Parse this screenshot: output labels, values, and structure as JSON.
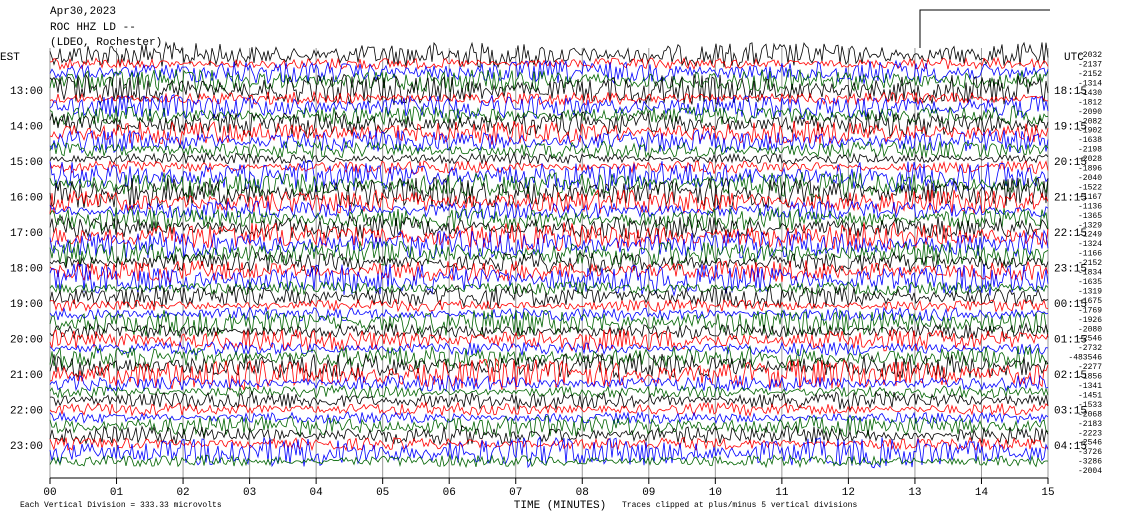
{
  "chart_data": {
    "type": "helicorder",
    "title_lines": [
      "Apr30,2023",
      "ROC HHZ LD --",
      "(LDEO, Rochester)"
    ],
    "left_axis_label": "EST",
    "left_labels": [
      "13:00",
      "14:00",
      "15:00",
      "16:00",
      "17:00",
      "18:00",
      "19:00",
      "20:00",
      "21:00",
      "22:00",
      "23:00"
    ],
    "right_axis_label": "UTC",
    "right_labels": [
      "18:15",
      "19:15",
      "20:15",
      "21:15",
      "22:15",
      "23:15",
      "00:15",
      "01:15",
      "02:15",
      "03:15",
      "04:15"
    ],
    "trace_labels": [
      "-2032",
      "-2137",
      "-2152",
      "-1314",
      "-1430",
      "-1812",
      "-2090",
      "-2082",
      "-1902",
      "-1638",
      "-2198",
      "-2028",
      "-1896",
      "-2040",
      "-1522",
      "-1167",
      "-1136",
      "-1365",
      "-1329",
      "-1249",
      "-1324",
      "-1166",
      "-2152",
      "-1834",
      "-1635",
      "-1319",
      "-1675",
      "-1769",
      "-1926",
      "-2080",
      "-2546",
      "-2732",
      "-483546",
      "-2277",
      "-1856",
      "-1341",
      "-1451",
      "-1533",
      "-2068",
      "-2183",
      "-2223",
      "-2546",
      "-3726",
      "-3286",
      "-2004"
    ],
    "colors": [
      "#000000",
      "#ff0000",
      "#0000ff",
      "#006400"
    ],
    "xlabel": "TIME (MINUTES)",
    "xlim": [
      0,
      15
    ],
    "xticks": [
      {
        "value": 0,
        "label": "00"
      },
      {
        "value": 1,
        "label": "01"
      },
      {
        "value": 2,
        "label": "02"
      },
      {
        "value": 3,
        "label": "03"
      },
      {
        "value": 4,
        "label": "04"
      },
      {
        "value": 5,
        "label": "05"
      },
      {
        "value": 6,
        "label": "06"
      },
      {
        "value": 7,
        "label": "07"
      },
      {
        "value": 8,
        "label": "08"
      },
      {
        "value": 9,
        "label": "09"
      },
      {
        "value": 10,
        "label": "10"
      },
      {
        "value": 11,
        "label": "11"
      },
      {
        "value": 12,
        "label": "12"
      },
      {
        "value": 13,
        "label": "13"
      },
      {
        "value": 14,
        "label": "14"
      },
      {
        "value": 15,
        "label": "15"
      }
    ],
    "footnote_left": "Each Vertical Division =  333.33 microvolts",
    "footnote_right": "Traces clipped at plus/minus 5 vertical divisions"
  }
}
